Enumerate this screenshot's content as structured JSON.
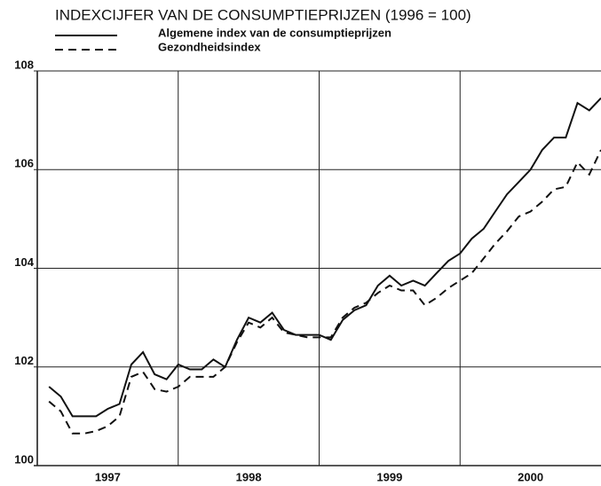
{
  "chart_data": {
    "type": "line",
    "title": "INDEXCIJFER VAN DE CONSUMPTIEPRIJZEN (1996 = 100)",
    "x": [
      1997.083,
      1997.167,
      1997.25,
      1997.333,
      1997.417,
      1997.5,
      1997.583,
      1997.667,
      1997.75,
      1997.833,
      1997.917,
      1998,
      1998.083,
      1998.167,
      1998.25,
      1998.333,
      1998.417,
      1998.5,
      1998.583,
      1998.667,
      1998.75,
      1998.833,
      1998.917,
      1999,
      1999.083,
      1999.167,
      1999.25,
      1999.333,
      1999.417,
      1999.5,
      1999.583,
      1999.667,
      1999.75,
      1999.833,
      1999.917,
      2000,
      2000.083,
      2000.167,
      2000.25,
      2000.333,
      2000.417,
      2000.5,
      2000.583,
      2000.667,
      2000.75,
      2000.833,
      2000.917,
      2001
    ],
    "series": [
      {
        "name": "Algemene index van de consumptieprijzen",
        "color": "#111111",
        "dash": "solid",
        "values": [
          101.6,
          101.4,
          101.0,
          101.0,
          101.0,
          101.15,
          101.25,
          102.05,
          102.3,
          101.85,
          101.75,
          102.05,
          101.95,
          101.95,
          102.15,
          102.0,
          102.55,
          103.0,
          102.9,
          103.1,
          102.75,
          102.65,
          102.65,
          102.65,
          102.55,
          102.95,
          103.15,
          103.25,
          103.65,
          103.85,
          103.65,
          103.75,
          103.65,
          103.9,
          104.15,
          104.3,
          104.6,
          104.8,
          105.15,
          105.5,
          105.75,
          106.0,
          106.4,
          106.65,
          106.65,
          107.35,
          107.2,
          107.45
        ]
      },
      {
        "name": "Gezondheidsindex",
        "color": "#111111",
        "dash": "dashed",
        "values": [
          101.3,
          101.1,
          100.65,
          100.65,
          100.7,
          100.8,
          101.0,
          101.8,
          101.9,
          101.55,
          101.5,
          101.6,
          101.8,
          101.8,
          101.8,
          102.0,
          102.5,
          102.9,
          102.8,
          103.0,
          102.7,
          102.65,
          102.6,
          102.6,
          102.6,
          103.0,
          103.2,
          103.3,
          103.5,
          103.65,
          103.55,
          103.55,
          103.25,
          103.4,
          103.6,
          103.75,
          103.9,
          104.2,
          104.5,
          104.75,
          105.05,
          105.15,
          105.35,
          105.6,
          105.65,
          106.15,
          105.9,
          106.4
        ]
      }
    ],
    "xlim": [
      1997,
      2001
    ],
    "xticks": [
      {
        "value": 1997.5,
        "label": "1997"
      },
      {
        "value": 1998.5,
        "label": "1998"
      },
      {
        "value": 1999.5,
        "label": "1999"
      },
      {
        "value": 2000.5,
        "label": "2000"
      }
    ],
    "xgrid": [
      1998,
      1999,
      2000
    ],
    "ylim": [
      100,
      108
    ],
    "yticks": [
      100,
      102,
      104,
      106,
      108
    ],
    "grid": true
  }
}
